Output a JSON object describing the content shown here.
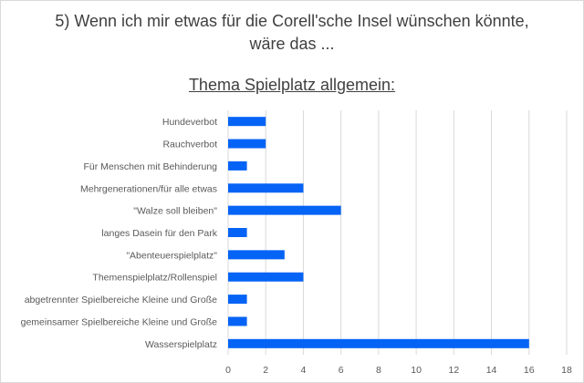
{
  "chart_data": {
    "type": "bar",
    "orientation": "horizontal",
    "title_lines": [
      "5) Wenn ich mir etwas für die Corell'sche Insel wünschen könnte,",
      "wäre das ..."
    ],
    "subtitle": "Thema Spielplatz allgemein:",
    "categories": [
      "Hundeverbot",
      "Rauchverbot",
      "Für Menschen mit Behinderung",
      "Mehrgenerationen/für alle etwas",
      "\"Walze soll bleiben\"",
      "langes Dasein für den Park",
      "\"Abenteuerspielplatz\"",
      "Themenspielplatz/Rollenspiel",
      "abgetrennter Spielbereiche Kleine und Große",
      "gemeinsamer Spielbereiche Kleine und Große",
      "Wasserspielplatz"
    ],
    "values": [
      2,
      2,
      1,
      4,
      6,
      1,
      3,
      4,
      1,
      1,
      16
    ],
    "xlim": [
      0,
      18
    ],
    "xticks": [
      "0",
      "2",
      "4",
      "6",
      "8",
      "10",
      "12",
      "14",
      "16",
      "18"
    ],
    "grid": true,
    "xlabel": "",
    "ylabel": "",
    "bar_color": "#0563f5",
    "grid_color": "#d9d9d9"
  }
}
